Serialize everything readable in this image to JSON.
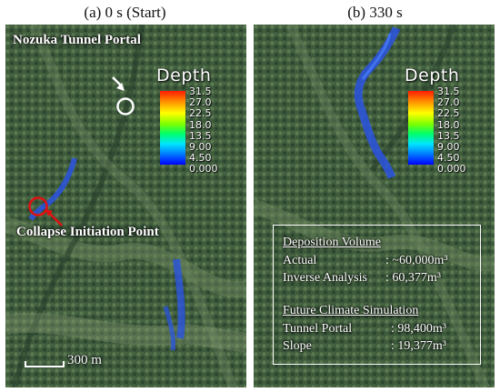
{
  "panels": [
    {
      "title": "(a) 0 s (Start)",
      "labels": {
        "portal": "Nozuka Tunnel Portal",
        "collapse": "Collapse Initiation Point"
      },
      "scale_label": "300 m",
      "legend": {
        "title": "Depth",
        "ticks": [
          "31.5",
          "27.0",
          "22.5",
          "18.0",
          "13.5",
          "9.00",
          "4.50",
          "0.000"
        ]
      }
    },
    {
      "title": "(b) 330 s",
      "legend": {
        "title": "Depth",
        "ticks": [
          "31.5",
          "27.0",
          "22.5",
          "18.0",
          "13.5",
          "9.00",
          "4.50",
          "0.000"
        ]
      },
      "info": {
        "heading1": "Deposition Volume",
        "actual_label": "Actual",
        "actual_value": ": ~60,000m³",
        "inverse_label": "Inverse Analysis",
        "inverse_value": ": 60,377m³",
        "heading2": "Future Climate Simulation",
        "portal_label": "Tunnel Portal",
        "portal_value": ": 98,400m³",
        "slope_label": "Slope",
        "slope_value": ": 19,377m³"
      }
    }
  ],
  "colors": {
    "forest_dark": "#2f4a30",
    "forest_light": "#5f7d55",
    "debris": "#2a54e0",
    "marker_white": "#ffffff",
    "marker_red": "#e01010"
  }
}
